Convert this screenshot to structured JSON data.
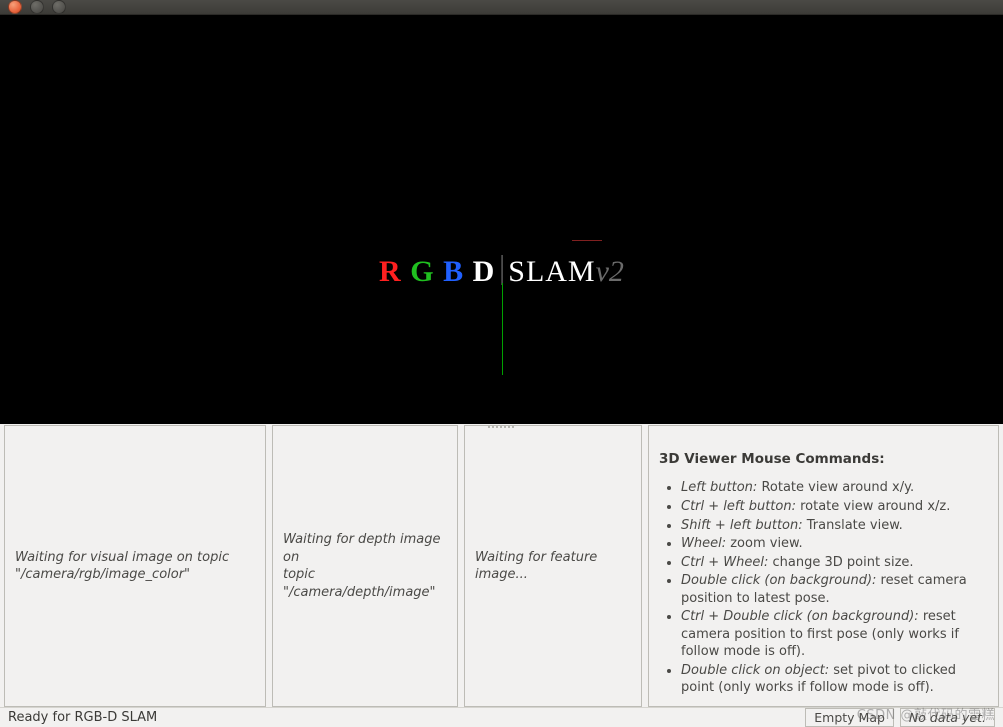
{
  "window": {
    "title": ""
  },
  "viewer": {
    "logo": {
      "r": "R",
      "g": "G",
      "b": "B",
      "d": "D",
      "slam": "SLAM",
      "v2": "v2"
    },
    "background_color": "#000000",
    "axis_colors": {
      "x": "#802020",
      "y": "#00a000"
    }
  },
  "panels": {
    "visual": {
      "line1": "Waiting for visual image on topic",
      "line2": "\"/camera/rgb/image_color\""
    },
    "depth": {
      "line1": "Waiting for depth image on",
      "line2": "topic",
      "line3": "\"/camera/depth/image\""
    },
    "feature": {
      "line1": "Waiting for feature image..."
    },
    "help": {
      "header": "3D Viewer Mouse Commands:",
      "items": [
        {
          "k": "Left button:",
          "t": " Rotate view around x/y."
        },
        {
          "k": "Ctrl + left button:",
          "t": " rotate view around x/z."
        },
        {
          "k": "Shift + left button:",
          "t": " Translate view."
        },
        {
          "k": "Wheel:",
          "t": " zoom view."
        },
        {
          "k": "Ctrl + Wheel:",
          "t": " change 3D point size."
        },
        {
          "k": "Double click (on background):",
          "t": " reset camera position to latest pose."
        },
        {
          "k": "Ctrl + Double click (on background):",
          "t": " reset camera position to first pose (only works if follow mode is off)."
        },
        {
          "k": "Double click on object:",
          "t": " set pivot to clicked point (only works if follow mode is off)."
        }
      ]
    }
  },
  "statusbar": {
    "message": "Ready for RGB-D SLAM",
    "map": "Empty Map",
    "data": "No data yet."
  },
  "watermark": "CSDN @敲代码的雪糕"
}
